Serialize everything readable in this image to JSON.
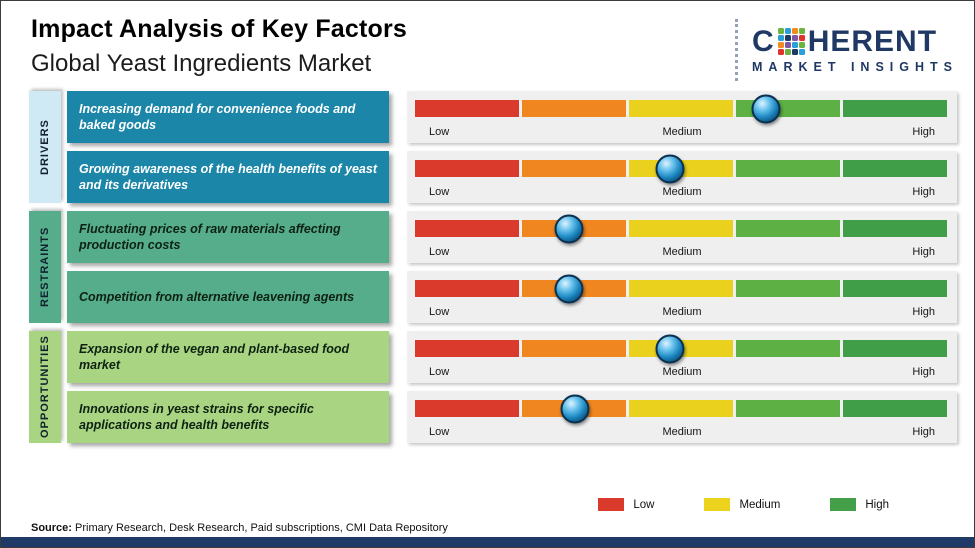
{
  "header": {
    "title": "Impact Analysis of Key Factors",
    "subtitle": "Global Yeast Ingredients Market"
  },
  "logo": {
    "name": "Coherent Market Insights",
    "word_start": "C",
    "word_end": "HERENT",
    "tagline": "MARKET INSIGHTS"
  },
  "scale": {
    "low": "Low",
    "medium": "Medium",
    "high": "High"
  },
  "groups": [
    {
      "name": "DRIVERS"
    },
    {
      "name": "RESTRAINTS"
    },
    {
      "name": "OPPORTUNITIES"
    }
  ],
  "rows": [
    {
      "group": "DRIVERS",
      "label": "Increasing demand for convenience foods and baked goods",
      "impact_pct": 66
    },
    {
      "group": "DRIVERS",
      "label": "Growing awareness of the health benefits of yeast and its derivatives",
      "impact_pct": 48
    },
    {
      "group": "RESTRAINTS",
      "label": "Fluctuating prices of raw materials affecting production costs",
      "impact_pct": 29
    },
    {
      "group": "RESTRAINTS",
      "label": "Competition from alternative leavening agents",
      "impact_pct": 29
    },
    {
      "group": "OPPORTUNITIES",
      "label": "Expansion of the vegan and plant-based food market",
      "impact_pct": 48
    },
    {
      "group": "OPPORTUNITIES",
      "label": "Innovations in yeast strains for specific applications and health benefits",
      "impact_pct": 30
    }
  ],
  "legend": {
    "items": [
      {
        "label": "Low",
        "color": "#d93a2b"
      },
      {
        "label": "Medium",
        "color": "#ecd31d"
      },
      {
        "label": "High",
        "color": "#44a048"
      }
    ]
  },
  "source": {
    "prefix": "Source:",
    "text": " Primary Research, Desk Research, Paid subscriptions, CMI Data Repository"
  },
  "colors": {
    "driver_box": "#1b86a8",
    "restraint_box": "#56ad8b",
    "opportunity_box": "#a9d583",
    "drivers_strip": "#cfe9f5",
    "restraints_strip": "#56ad8b",
    "opportunities_strip": "#a9d583",
    "bar_segments": [
      "#d93a2b",
      "#f0861f",
      "#e9d11d",
      "#5cb044",
      "#3f9e47"
    ],
    "footer_bar": "#203a68"
  },
  "chart_data": {
    "type": "scatter",
    "title": "Impact Analysis of Key Factors",
    "subtitle": "Global Yeast Ingredients Market",
    "x_axis": {
      "labels": [
        "Low",
        "Medium",
        "High"
      ],
      "range_pct": [
        0,
        100
      ]
    },
    "points": [
      {
        "category": "Drivers",
        "factor": "Increasing demand for convenience foods and baked goods",
        "impact_pct": 66,
        "impact_level": "Medium-High"
      },
      {
        "category": "Drivers",
        "factor": "Growing awareness of the health benefits of yeast and its derivatives",
        "impact_pct": 48,
        "impact_level": "Medium"
      },
      {
        "category": "Restraints",
        "factor": "Fluctuating prices of raw materials affecting production costs",
        "impact_pct": 29,
        "impact_level": "Low-Medium"
      },
      {
        "category": "Restraints",
        "factor": "Competition from alternative leavening agents",
        "impact_pct": 29,
        "impact_level": "Low-Medium"
      },
      {
        "category": "Opportunities",
        "factor": "Expansion of the vegan and plant-based food market",
        "impact_pct": 48,
        "impact_level": "Medium"
      },
      {
        "category": "Opportunities",
        "factor": "Innovations in yeast strains for specific applications and health benefits",
        "impact_pct": 30,
        "impact_level": "Low-Medium"
      }
    ],
    "legend": [
      "Low",
      "Medium",
      "High"
    ],
    "grid": false,
    "legend_position": "bottom-right"
  }
}
